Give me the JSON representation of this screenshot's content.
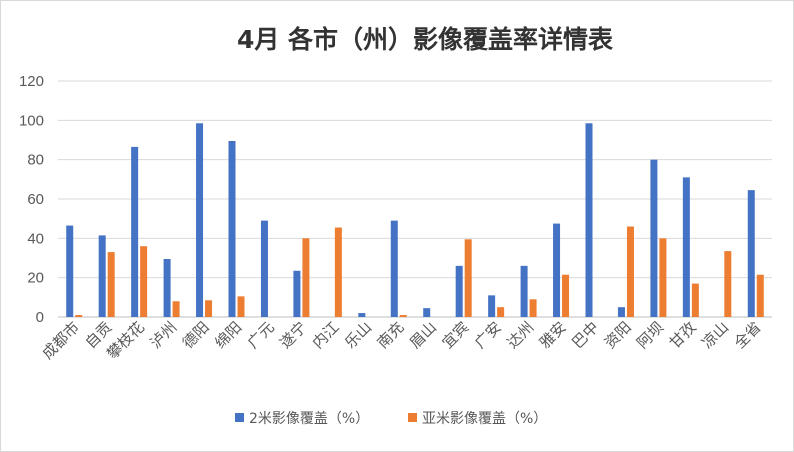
{
  "chart_data": {
    "type": "bar",
    "title": "4月 各市（州）影像覆盖率详情表",
    "categories": [
      "成都市",
      "自贡",
      "攀枝花",
      "泸州",
      "德阳",
      "绵阳",
      "广元",
      "遂宁",
      "内江",
      "乐山",
      "南充",
      "眉山",
      "宜宾",
      "广安",
      "达州",
      "雅安",
      "巴中",
      "资阳",
      "阿坝",
      "甘孜",
      "凉山",
      "全省"
    ],
    "series": [
      {
        "name": "2米影像覆盖（%）",
        "color": "#4472c4",
        "values": [
          46.5,
          41.5,
          86.5,
          29.5,
          98.5,
          89.5,
          49,
          23.5,
          0,
          2,
          49,
          4.5,
          26,
          11,
          26,
          47.5,
          98.5,
          5,
          80,
          71,
          0,
          64.5
        ]
      },
      {
        "name": "亚米影像覆盖（%）",
        "color": "#ed7d31",
        "values": [
          1,
          33,
          36,
          8,
          8.5,
          10.5,
          0,
          40,
          45.5,
          0,
          1,
          0,
          39.5,
          5,
          9,
          21.5,
          0,
          46,
          40,
          17,
          33.5,
          21.5
        ]
      }
    ],
    "ylim": [
      0,
      120
    ],
    "yticks": [
      0,
      20,
      40,
      60,
      80,
      100,
      120
    ],
    "grid": true,
    "legend": "bottom"
  }
}
